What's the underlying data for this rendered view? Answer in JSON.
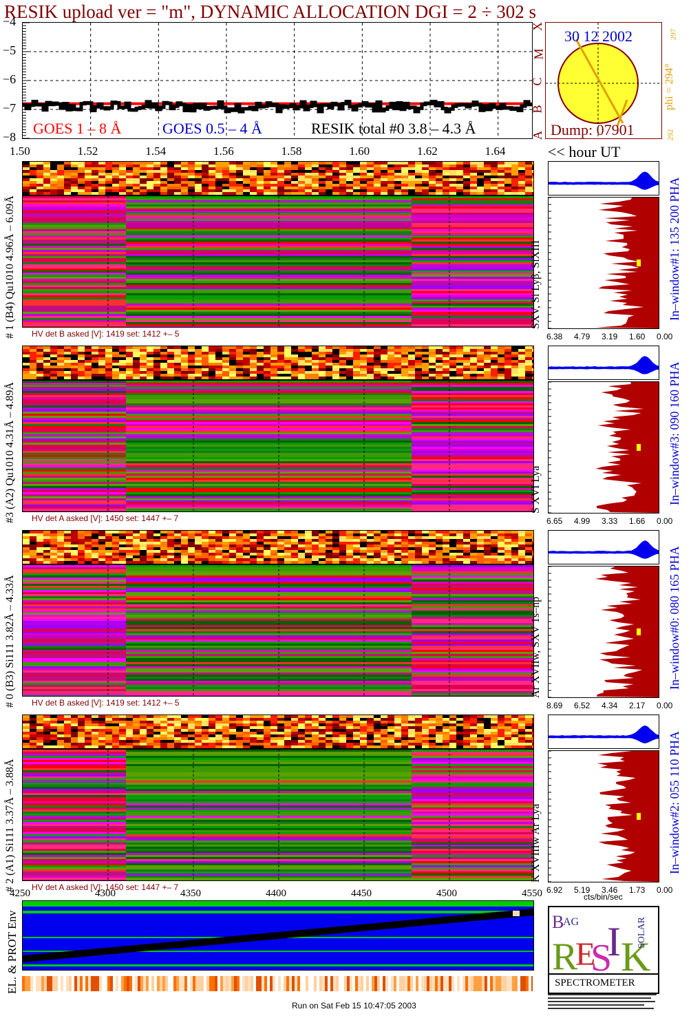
{
  "header": {
    "title": "RESIK upload ver = \"m\", DYNAMIC ALLOCATION  DGI =   2 ÷ 302 s"
  },
  "goes_panel": {
    "y_ticks": [
      "−4",
      "−5",
      "−6",
      "−7",
      "−8"
    ],
    "x_ticks": [
      "1.50",
      "1.52",
      "1.54",
      "1.56",
      "1.58",
      "1.60",
      "1.62",
      "1.64"
    ],
    "legend_goes18": "GOES 1 – 8 Å",
    "legend_goes054": "GOES 0.5 – 4 Å",
    "legend_resik": "RESIK total #0  3.8 – 4.3 Å",
    "colors": {
      "goes18": "#ff0000",
      "goes054": "#0000cc",
      "resik": "#000000"
    }
  },
  "chart_data": [
    {
      "type": "line",
      "title": "",
      "ylim": [
        -8,
        -4
      ],
      "xlim": [
        1.5,
        1.65
      ],
      "grid": true,
      "series": [
        {
          "name": "GOES 1 – 8 Å",
          "approx_level": -6.8
        },
        {
          "name": "RESIK total #0  3.8 – 4.3 Å",
          "approx_level": -6.9
        }
      ]
    },
    {
      "type": "heatmap",
      "label": "#1 (B4) Qu1010 4.96Å – 6.09Å",
      "xlim": [
        4250,
        4550
      ]
    },
    {
      "type": "heatmap",
      "label": "#3 (A2) Qu1010  4.31Å – 4.89Å",
      "xlim": [
        4250,
        4550
      ]
    },
    {
      "type": "heatmap",
      "label": "# 0 (B3) Si111  3.82Å – 4.33Å",
      "xlim": [
        4250,
        4550
      ]
    },
    {
      "type": "heatmap",
      "label": "# 2 (A1) Si111  3.37Å –  3.88Å",
      "xlim": [
        4250,
        4550
      ]
    }
  ],
  "orbit": {
    "date": "30 12 2002",
    "dump": "Dump: 07901",
    "phi": "phi = 294°",
    "phi_sup": "297",
    "phi_low": "292",
    "side_letters": [
      "X",
      "M",
      "C",
      "B",
      "A"
    ]
  },
  "hour_ut_label": "<< hour UT",
  "channels": [
    {
      "left_label": "# 1 (B4) Qu1010 4.96Å – 6.09Å",
      "lines_label": "SXV, Si Lyβ, SiXIII",
      "window_label": "In–window#1:  135 200 PHA",
      "hv": "HV det B asked [V]:  1419 set:  1412  +–    5",
      "pha_ticks": [
        "6.38",
        "4.79",
        "3.19",
        "1.60",
        "0.00"
      ]
    },
    {
      "left_label": "#3 (A2) Qu1010  4.31Å – 4.89Å",
      "lines_label": "S XVI Lya",
      "window_label": "In–window#3:  090 160 PHA",
      "hv": "HV det A asked [V]:  1450 set:  1447  +–    7",
      "pha_ticks": [
        "6.65",
        "4.99",
        "3.33",
        "1.66",
        "0.00"
      ]
    },
    {
      "left_label": "# 0 (B3) Si111  3.82Å – 4.33Å",
      "lines_label": "Ar XVIIw,  SXV 1s–np",
      "window_label": "In–window#0:  080 165 PHA",
      "hv": "HV det B asked [V]:  1419 set:  1412  +–    5",
      "pha_ticks": [
        "8.69",
        "6.52",
        "4.34",
        "2.17",
        "0.00"
      ]
    },
    {
      "left_label": "# 2 (A1) Si111  3.37Å –  3.88Å",
      "lines_label": "K XVIIIw  Ar Lya",
      "window_label": "In–window#2:  055 110 PHA",
      "hv": "HV det A asked [V]:  1450 set:  1447  +–    7",
      "pha_ticks": [
        "6.92",
        "5.19",
        "3.46",
        "1.73",
        "0.00"
      ]
    }
  ],
  "pha_xlabel": "cts/bin/sec",
  "bottom_axis": {
    "ticks": [
      "4250",
      "4300",
      "4350",
      "4400",
      "4450",
      "4500",
      "4550"
    ]
  },
  "env_label": "EL. & PROT Env",
  "logo": {
    "bottom_text": "SPECTROMETER",
    "letters": "RESIK",
    "words": [
      "BRAGG",
      "SOLAR"
    ]
  },
  "footer": "Run on Sat Feb 15 10:47:05 2003"
}
